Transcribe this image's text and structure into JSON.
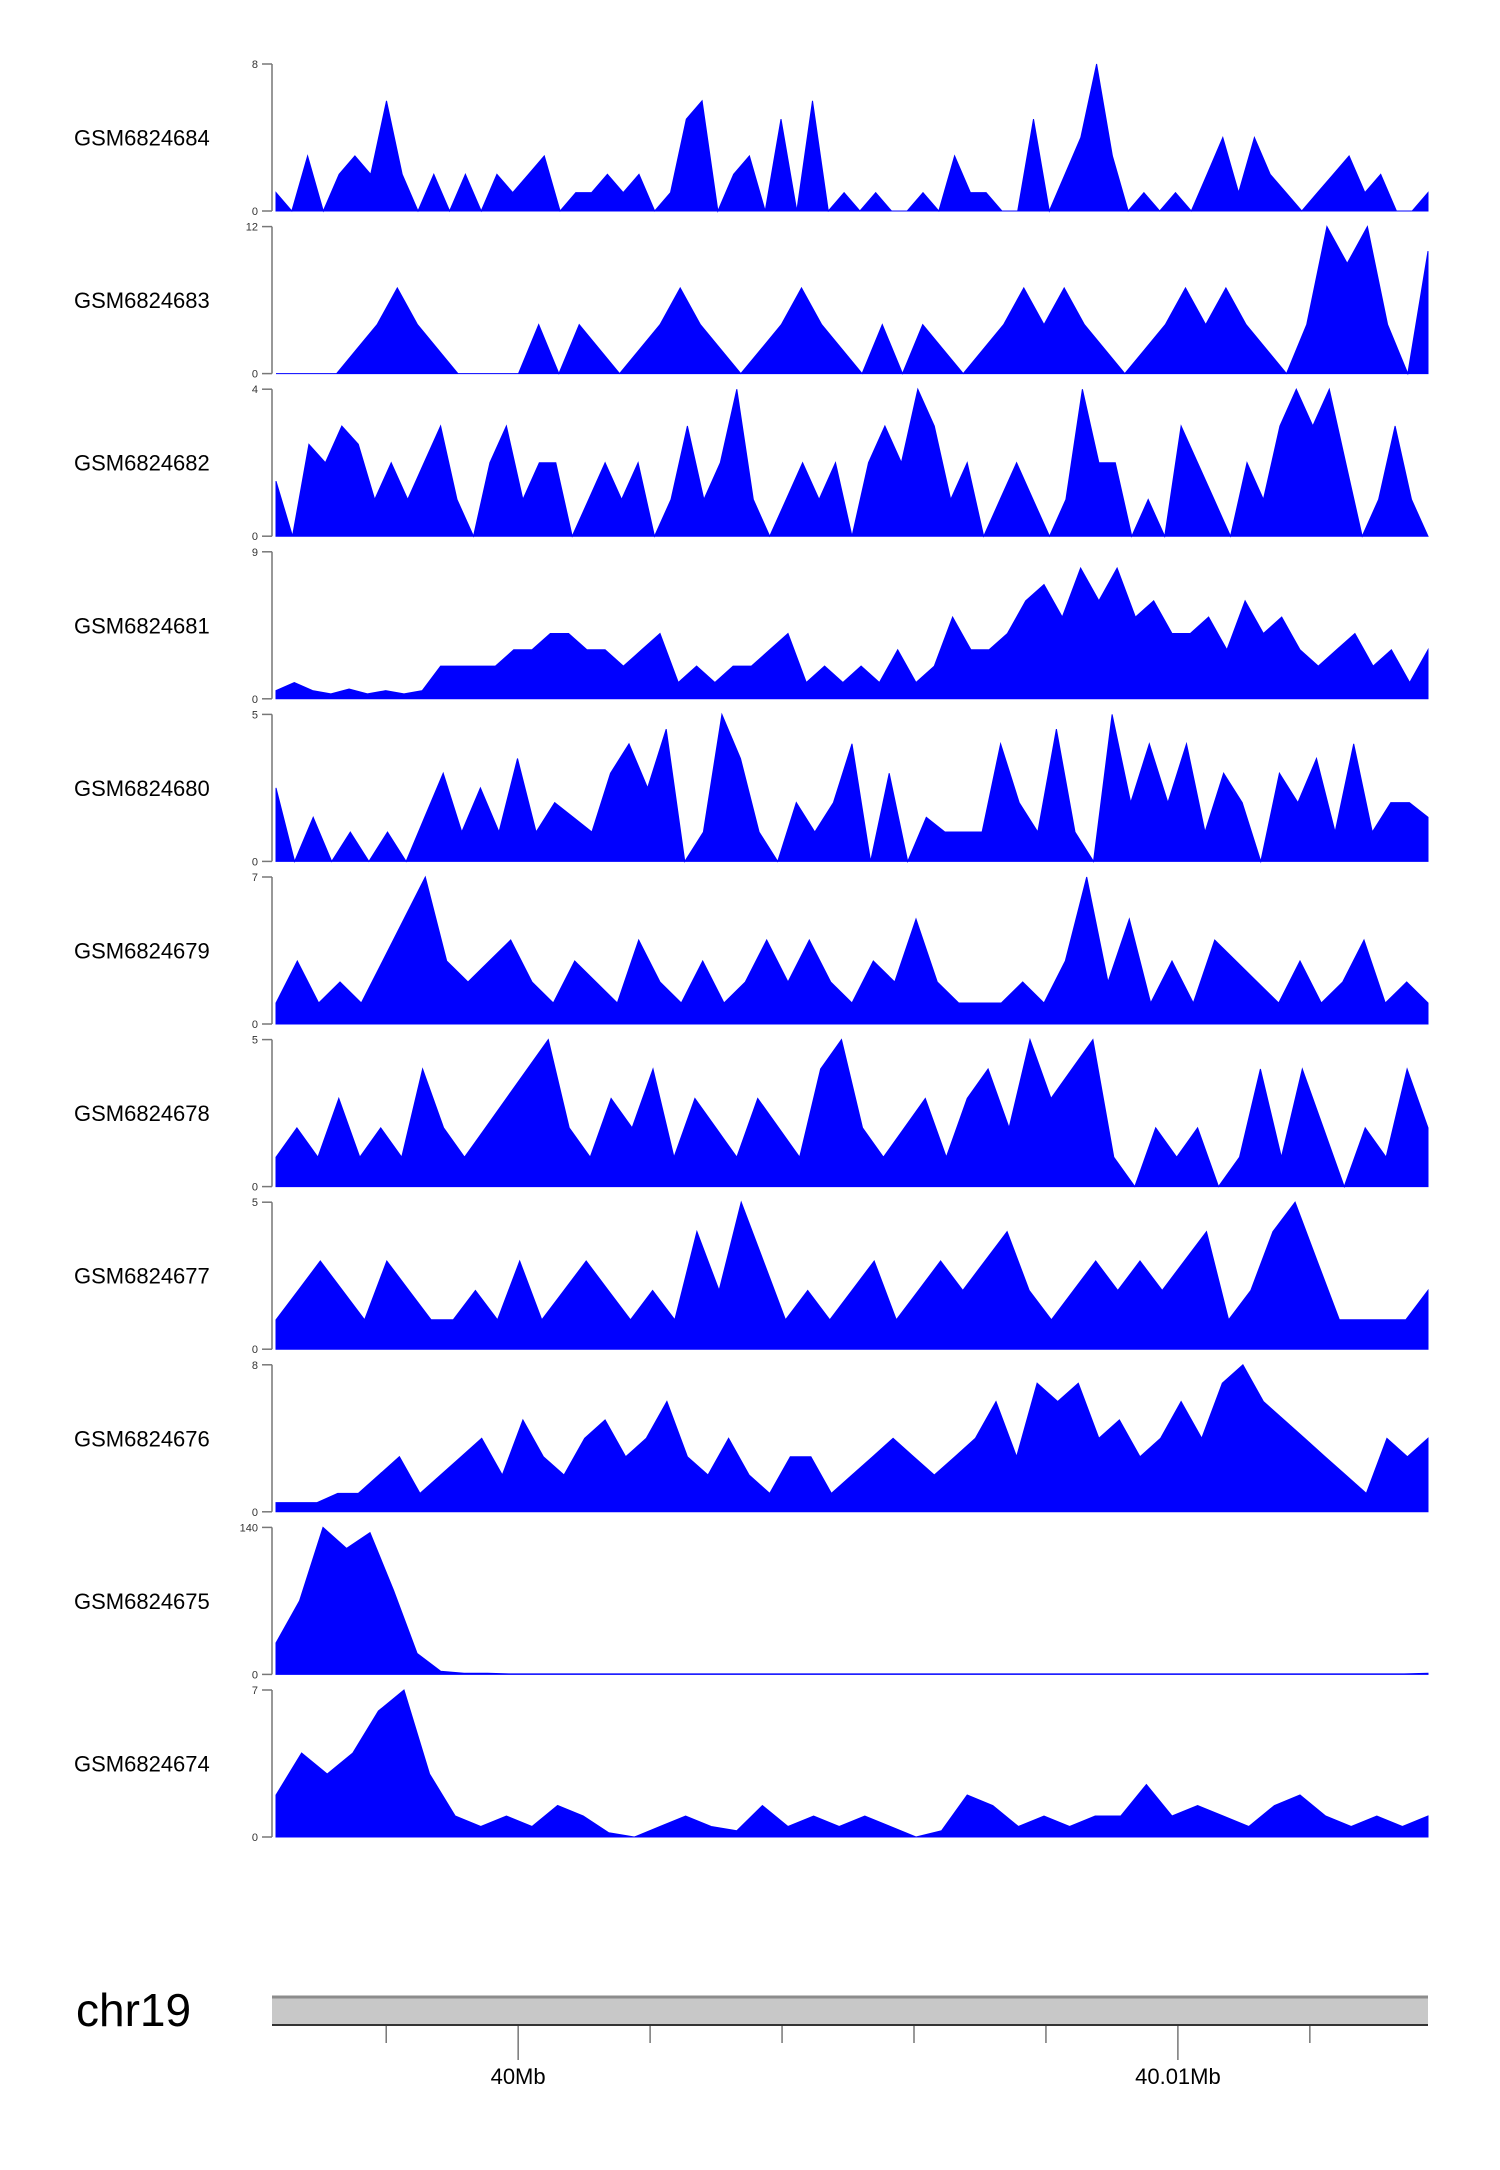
{
  "chart_data": {
    "type": "area",
    "fill_color": "#0000FF",
    "xlim": [
      39996270,
      40013790
    ],
    "tracks": [
      {
        "name": "GSM6824684",
        "ylim": [
          0,
          8
        ],
        "values": [
          1,
          0,
          3,
          0,
          2,
          3,
          2,
          6,
          2,
          0,
          2,
          0,
          2,
          0,
          2,
          1,
          2,
          3,
          0,
          1,
          1,
          2,
          1,
          2,
          0,
          1,
          5,
          6,
          0,
          2,
          3,
          0,
          5,
          0,
          6,
          0,
          1,
          0,
          1,
          0,
          0,
          1,
          0,
          3,
          1,
          1,
          0,
          0,
          5,
          0,
          2,
          4,
          8,
          3,
          0,
          1,
          0,
          1,
          0,
          2,
          4,
          1,
          4,
          2,
          1,
          0,
          1,
          2,
          3,
          1,
          2,
          0,
          0,
          1
        ]
      },
      {
        "name": "GSM6824683",
        "ylim": [
          0,
          12
        ],
        "values": [
          0,
          0,
          0,
          0,
          2,
          4,
          7,
          4,
          2,
          0,
          0,
          0,
          0,
          4,
          0,
          4,
          2,
          0,
          2,
          4,
          7,
          4,
          2,
          0,
          2,
          4,
          7,
          4,
          2,
          0,
          4,
          0,
          4,
          2,
          0,
          2,
          4,
          7,
          4,
          7,
          4,
          2,
          0,
          2,
          4,
          7,
          4,
          7,
          4,
          2,
          0,
          4,
          12,
          9,
          12,
          4,
          0,
          10
        ]
      },
      {
        "name": "GSM6824682",
        "ylim": [
          0,
          4
        ],
        "values": [
          1.5,
          0,
          2.5,
          2,
          3,
          2.5,
          1,
          2,
          1,
          2,
          3,
          1,
          0,
          2,
          3,
          1,
          2,
          2,
          0,
          1,
          2,
          1,
          2,
          0,
          1,
          3,
          1,
          2,
          4,
          1,
          0,
          1,
          2,
          1,
          2,
          0,
          2,
          3,
          2,
          4,
          3,
          1,
          2,
          0,
          1,
          2,
          1,
          0,
          1,
          4,
          2,
          2,
          0,
          1,
          0,
          3,
          2,
          1,
          0,
          2,
          1,
          3,
          4,
          3,
          4,
          2,
          0,
          1,
          3,
          1,
          0
        ]
      },
      {
        "name": "GSM6824681",
        "ylim": [
          0,
          9
        ],
        "values": [
          0.5,
          1,
          0.5,
          0.3,
          0.6,
          0.3,
          0.5,
          0.3,
          0.5,
          2,
          2,
          2,
          2,
          3,
          3,
          4,
          4,
          3,
          3,
          2,
          3,
          4,
          1,
          2,
          1,
          2,
          2,
          3,
          4,
          1,
          2,
          1,
          2,
          1,
          3,
          1,
          2,
          5,
          3,
          3,
          4,
          6,
          7,
          5,
          8,
          6,
          8,
          5,
          6,
          4,
          4,
          5,
          3,
          6,
          4,
          5,
          3,
          2,
          3,
          4,
          2,
          3,
          1,
          3
        ]
      },
      {
        "name": "GSM6824680",
        "ylim": [
          0,
          5
        ],
        "values": [
          2.5,
          0,
          1.5,
          0,
          1,
          0,
          1,
          0,
          1.5,
          3,
          1,
          2.5,
          1,
          3.5,
          1,
          2,
          1.5,
          1,
          3,
          4,
          2.5,
          4.5,
          0,
          1,
          5,
          3.5,
          1,
          0,
          2,
          1,
          2,
          4,
          0,
          3,
          0,
          1.5,
          1,
          1,
          1,
          4,
          2,
          1,
          4.5,
          1,
          0,
          5,
          2,
          4,
          2,
          4,
          1,
          3,
          2,
          0,
          3,
          2,
          3.5,
          1,
          4,
          1,
          2,
          2,
          1.5
        ]
      },
      {
        "name": "GSM6824679",
        "ylim": [
          0,
          7
        ],
        "values": [
          1,
          3,
          1,
          2,
          1,
          3,
          5,
          7,
          3,
          2,
          3,
          4,
          2,
          1,
          3,
          2,
          1,
          4,
          2,
          1,
          3,
          1,
          2,
          4,
          2,
          4,
          2,
          1,
          3,
          2,
          5,
          2,
          1,
          1,
          1,
          2,
          1,
          3,
          7,
          2,
          5,
          1,
          3,
          1,
          4,
          3,
          2,
          1,
          3,
          1,
          2,
          4,
          1,
          2,
          1
        ]
      },
      {
        "name": "GSM6824678",
        "ylim": [
          0,
          5
        ],
        "values": [
          1,
          2,
          1,
          3,
          1,
          2,
          1,
          4,
          2,
          1,
          2,
          3,
          4,
          5,
          2,
          1,
          3,
          2,
          4,
          1,
          3,
          2,
          1,
          3,
          2,
          1,
          4,
          5,
          2,
          1,
          2,
          3,
          1,
          3,
          4,
          2,
          5,
          3,
          4,
          5,
          1,
          0,
          2,
          1,
          2,
          0,
          1,
          4,
          1,
          4,
          2,
          0,
          2,
          1,
          4,
          2
        ]
      },
      {
        "name": "GSM6824677",
        "ylim": [
          0,
          5
        ],
        "values": [
          1,
          2,
          3,
          2,
          1,
          3,
          2,
          1,
          1,
          2,
          1,
          3,
          1,
          2,
          3,
          2,
          1,
          2,
          1,
          4,
          2,
          5,
          3,
          1,
          2,
          1,
          2,
          3,
          1,
          2,
          3,
          2,
          3,
          4,
          2,
          1,
          2,
          3,
          2,
          3,
          2,
          3,
          4,
          1,
          2,
          4,
          5,
          3,
          1,
          1,
          1,
          1,
          2
        ]
      },
      {
        "name": "GSM6824676",
        "ylim": [
          0,
          8
        ],
        "values": [
          0.5,
          0.5,
          0.5,
          1,
          1,
          2,
          3,
          1,
          2,
          3,
          4,
          2,
          5,
          3,
          2,
          4,
          5,
          3,
          4,
          6,
          3,
          2,
          4,
          2,
          1,
          3,
          3,
          1,
          2,
          3,
          4,
          3,
          2,
          3,
          4,
          6,
          3,
          7,
          6,
          7,
          4,
          5,
          3,
          4,
          6,
          4,
          7,
          8,
          6,
          5,
          4,
          3,
          2,
          1,
          4,
          3,
          4
        ]
      },
      {
        "name": "GSM6824675",
        "ylim": [
          0,
          140
        ],
        "values": [
          30,
          70,
          140,
          120,
          135,
          80,
          20,
          3,
          1,
          1,
          0.5,
          0.5,
          0.5,
          0.5,
          0.5,
          0.5,
          0.5,
          0.5,
          0.5,
          0.5,
          0.5,
          0.5,
          0.5,
          0.5,
          0.5,
          0.5,
          0.5,
          0.5,
          0.5,
          0.5,
          0.5,
          0.5,
          0.5,
          0.5,
          0.5,
          0.5,
          0.5,
          0.5,
          0.5,
          0.5,
          0.5,
          0.5,
          0.5,
          0.5,
          0.5,
          0.5,
          0.5,
          0.5,
          0.5,
          1
        ]
      },
      {
        "name": "GSM6824674",
        "ylim": [
          0,
          7
        ],
        "values": [
          2,
          4,
          3,
          4,
          6,
          7,
          3,
          1,
          0.5,
          1,
          0.5,
          1.5,
          1,
          0.2,
          0,
          0.5,
          1,
          0.5,
          0.3,
          1.5,
          0.5,
          1,
          0.5,
          1,
          0.5,
          0,
          0.3,
          2,
          1.5,
          0.5,
          1,
          0.5,
          1,
          1,
          2.5,
          1,
          1.5,
          1,
          0.5,
          1.5,
          2,
          1,
          0.5,
          1,
          0.5,
          1
        ]
      }
    ],
    "axis": {
      "chromosome": "chr19",
      "ticks": [
        39998000,
        40000000,
        40002000,
        40004000,
        40006000,
        40008000,
        40010000,
        40012000
      ],
      "tick_labels": [
        {
          "pos": 40000000,
          "label": "40Mb"
        },
        {
          "pos": 40010000,
          "label": "40.01Mb"
        }
      ]
    }
  }
}
